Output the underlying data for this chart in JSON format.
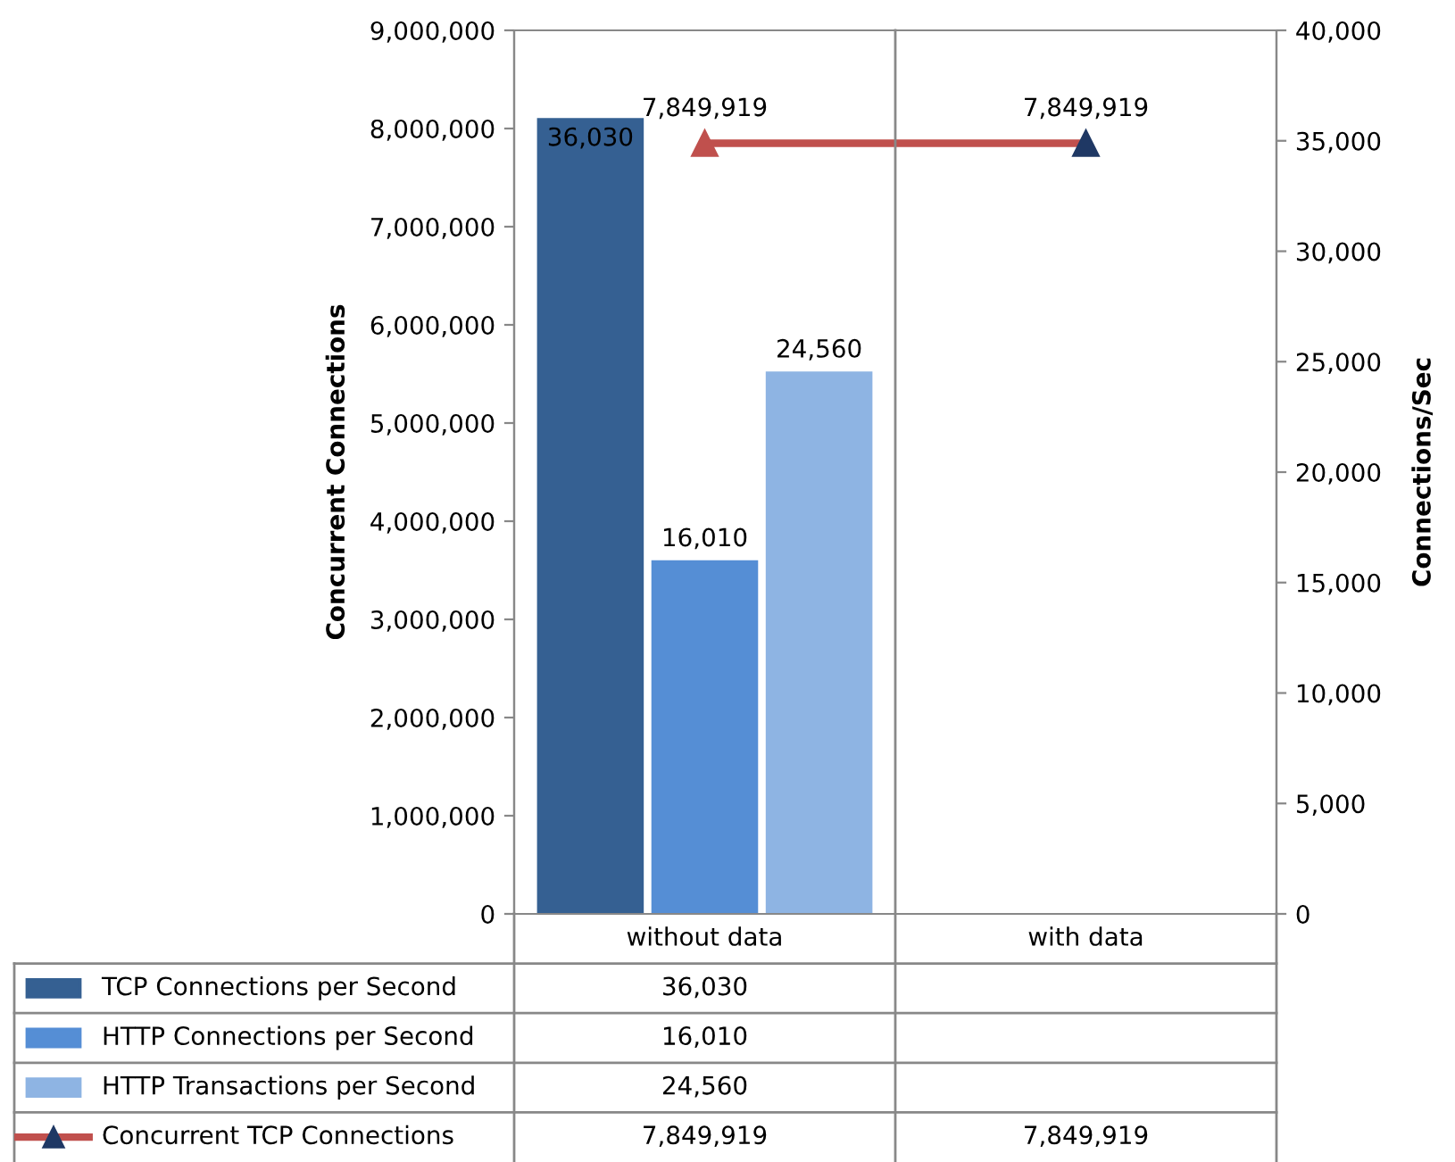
{
  "chart_data": {
    "type": "bar",
    "categories": [
      "without data",
      "with data"
    ],
    "legend": "bottom left",
    "ylabel": "Concurrent Connections",
    "y2label": "Connections/Sec",
    "ylim": [
      0,
      9000000
    ],
    "yticks": [
      {
        "value": 0,
        "label": "0"
      },
      {
        "value": 1000000,
        "label": "1,000,000"
      },
      {
        "value": 2000000,
        "label": "2,000,000"
      },
      {
        "value": 3000000,
        "label": "3,000,000"
      },
      {
        "value": 4000000,
        "label": "4,000,000"
      },
      {
        "value": 5000000,
        "label": "5,000,000"
      },
      {
        "value": 6000000,
        "label": "6,000,000"
      },
      {
        "value": 7000000,
        "label": "7,000,000"
      },
      {
        "value": 8000000,
        "label": "8,000,000"
      },
      {
        "value": 9000000,
        "label": "9,000,000"
      }
    ],
    "y2lim": [
      0,
      40000
    ],
    "y2ticks": [
      {
        "value": 0,
        "label": "0"
      },
      {
        "value": 5000,
        "label": "5,000"
      },
      {
        "value": 10000,
        "label": "10,000"
      },
      {
        "value": 15000,
        "label": "15,000"
      },
      {
        "value": 20000,
        "label": "20,000"
      },
      {
        "value": 25000,
        "label": "25,000"
      },
      {
        "value": 30000,
        "label": "30,000"
      },
      {
        "value": 35000,
        "label": "35,000"
      },
      {
        "value": 40000,
        "label": "40,000"
      }
    ],
    "series": [
      {
        "name": "TCP Connections per Second",
        "color": "#356092",
        "axis": "y2",
        "values": [
          36030,
          null
        ],
        "value_labels": [
          "36,030",
          null
        ]
      },
      {
        "name": "HTTP Connections per Second",
        "color": "#558ed5",
        "axis": "y2",
        "values": [
          16010,
          null
        ],
        "value_labels": [
          "16,010",
          null
        ]
      },
      {
        "name": "HTTP Transactions per Second",
        "color": "#8eb4e3",
        "axis": "y2",
        "values": [
          24560,
          null
        ],
        "value_labels": [
          "24,560",
          null
        ]
      },
      {
        "name": "Concurrent TCP Connections",
        "type": "line",
        "color": "#c0504d",
        "colors": [
          "#c0504d",
          "#1f3864"
        ],
        "marker": "triangle",
        "axis": "y",
        "values": [
          7849919,
          7849919
        ],
        "value_labels": [
          "7,849,919",
          "7,849,919"
        ]
      }
    ]
  }
}
